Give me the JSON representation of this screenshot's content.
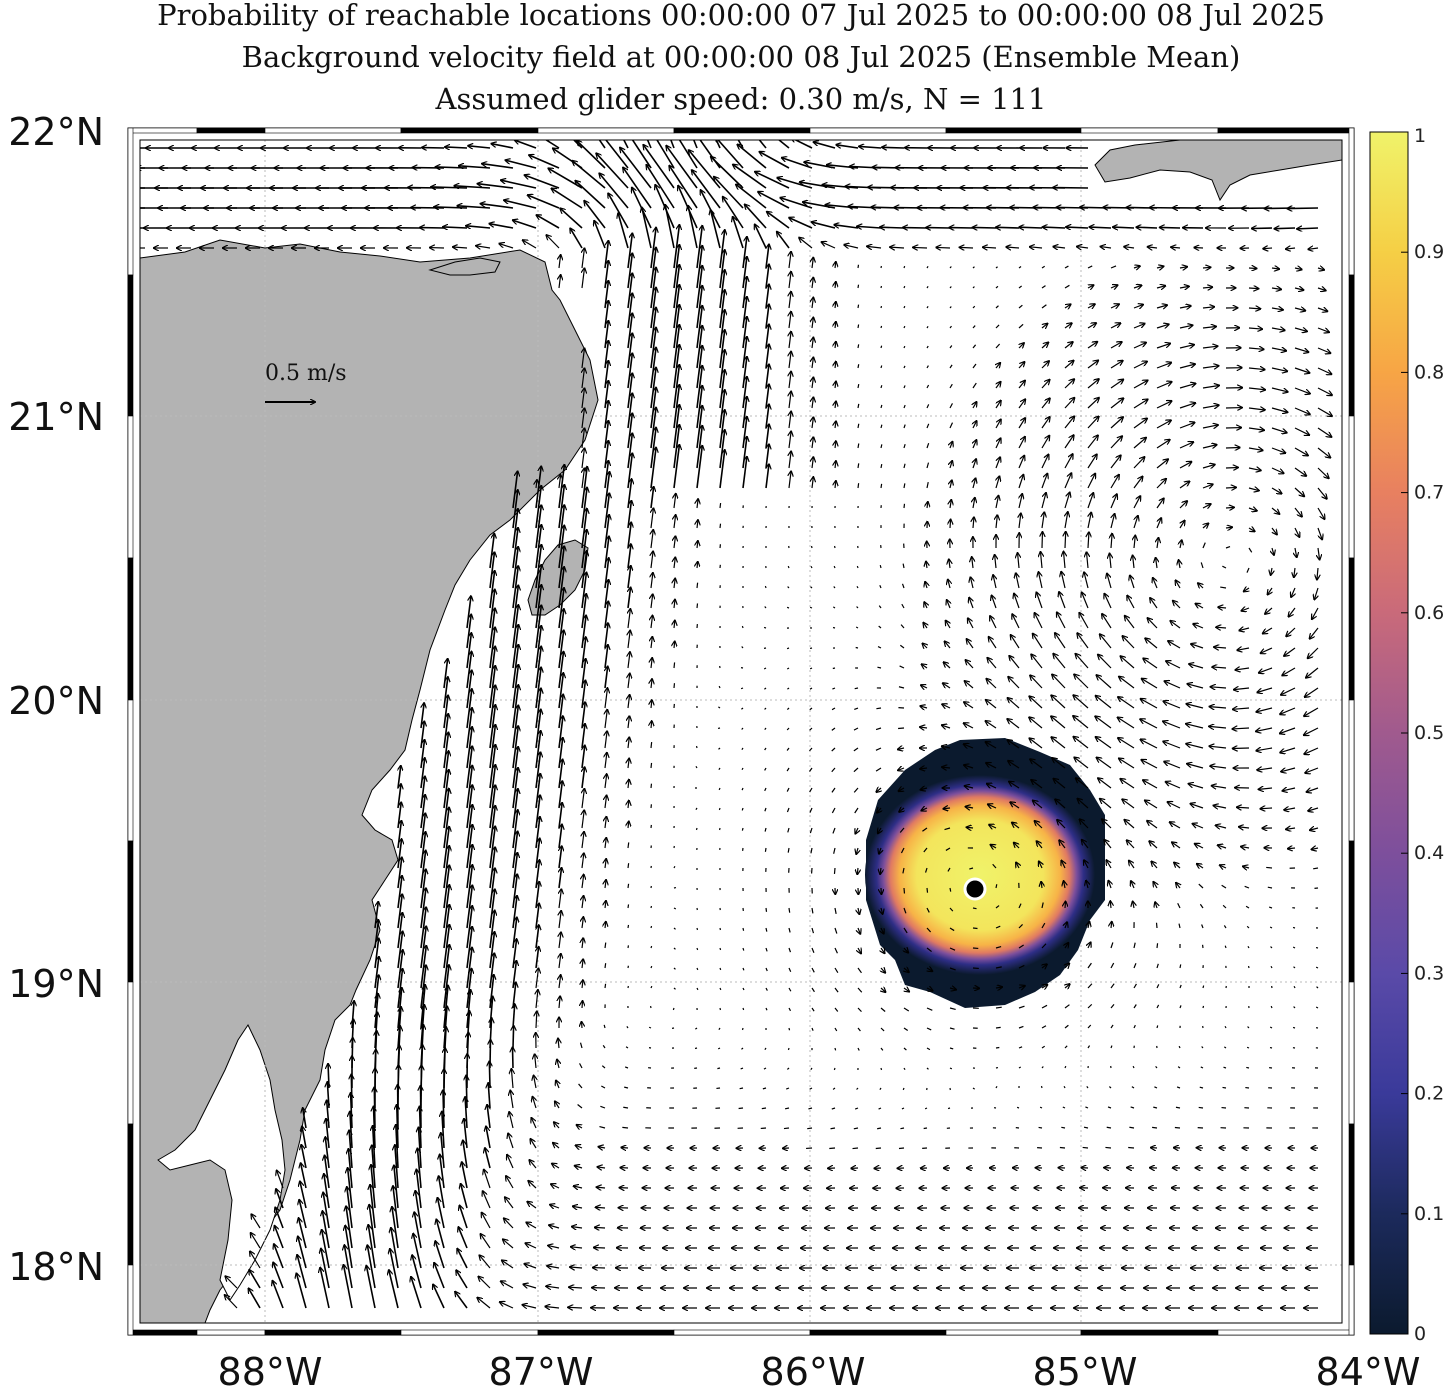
{
  "title": {
    "line1": "Probability of reachable locations 00:00:00 07 Jul 2025 to 00:00:00 08 Jul 2025",
    "line2": "Background velocity field at 00:00:00 08 Jul 2025 (Ensemble Mean)",
    "line3": "Assumed glider speed: 0.30 m/s, N = 111"
  },
  "map": {
    "lon_range": [
      -88.5,
      -84.0
    ],
    "lat_range": [
      17.77,
      22.0
    ],
    "lon_ticks": [
      {
        "value": -88,
        "label": "88°W"
      },
      {
        "value": -87,
        "label": "87°W"
      },
      {
        "value": -86,
        "label": "86°W"
      },
      {
        "value": -85,
        "label": "85°W"
      },
      {
        "value": -84,
        "label": "84°W"
      }
    ],
    "lat_ticks": [
      {
        "value": 22,
        "label": "22°N"
      },
      {
        "value": 21,
        "label": "21°N"
      },
      {
        "value": 20,
        "label": "20°N"
      },
      {
        "value": 19,
        "label": "19°N"
      },
      {
        "value": 18,
        "label": "18°N"
      }
    ],
    "grid": true,
    "land_color": "#b3b3b3",
    "ocean_color": "#ffffff"
  },
  "scale_arrow": {
    "label": "0.5 m/s",
    "speed_ms": 0.5
  },
  "chart_data": {
    "type": "heatmap",
    "field": "probability of reachable locations",
    "center": {
      "lon": -85.42,
      "lat": 19.33
    },
    "extent": {
      "lon_min": -85.87,
      "lon_max": -85.0,
      "lat_min": 18.9,
      "lat_max": 19.88
    },
    "start_marker": {
      "lon": -85.42,
      "lat": 19.33
    },
    "colorbar": {
      "min": 0,
      "max": 1,
      "ticks": [
        {
          "value": 0,
          "label": "0"
        },
        {
          "value": 0.1,
          "label": "0.1"
        },
        {
          "value": 0.2,
          "label": "0.2"
        },
        {
          "value": 0.3,
          "label": "0.3"
        },
        {
          "value": 0.4,
          "label": "0.4"
        },
        {
          "value": 0.5,
          "label": "0.5"
        },
        {
          "value": 0.6,
          "label": "0.6"
        },
        {
          "value": 0.7,
          "label": "0.7"
        },
        {
          "value": 0.8,
          "label": "0.8"
        },
        {
          "value": 0.9,
          "label": "0.9"
        },
        {
          "value": 1,
          "label": "1"
        }
      ],
      "colors": [
        "#0b1a2e",
        "#1c2a5c",
        "#3a3a9a",
        "#5a4aa8",
        "#7d4f9c",
        "#a05a8e",
        "#c96a7a",
        "#e88060",
        "#f7a545",
        "#f5cf45",
        "#f0f36a"
      ]
    }
  }
}
